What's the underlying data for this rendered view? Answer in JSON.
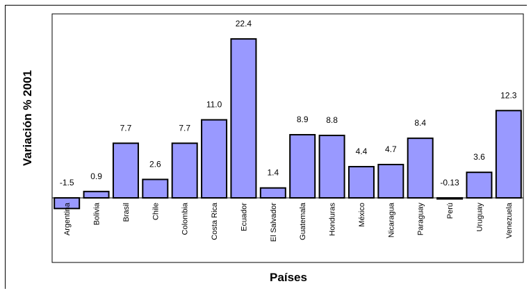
{
  "chart_data": {
    "type": "bar",
    "title": "",
    "xlabel": "Países",
    "ylabel": "Variación % 2001",
    "ylim": [
      -2.2,
      25.5
    ],
    "grid": false,
    "legend": "none",
    "categories": [
      "Argentina",
      "Bolivia",
      "Brasil",
      "Chile",
      "Colombia",
      "Costa Rica",
      "Ecuador",
      "El Salvador",
      "Guatemala",
      "Honduras",
      "México",
      "Nicaragua",
      "Paraguay",
      "Perú",
      "Uruguay",
      "Venezuela"
    ],
    "values": [
      -1.5,
      0.9,
      7.7,
      2.6,
      7.7,
      11.0,
      22.4,
      1.4,
      8.9,
      8.8,
      4.4,
      4.7,
      8.4,
      -0.13,
      3.6,
      12.3
    ],
    "value_labels": [
      "-1.5",
      "0.9",
      "7.7",
      "2.6",
      "7.7",
      "11.0",
      "22.4",
      "1.4",
      "8.9",
      "8.8",
      "4.4",
      "4.7",
      "8.4",
      "-0.13",
      "3.6",
      "12.3"
    ],
    "colors": {
      "bar_fill": "#9999ff",
      "bar_stroke": "#000000",
      "axis": "#000000"
    }
  }
}
